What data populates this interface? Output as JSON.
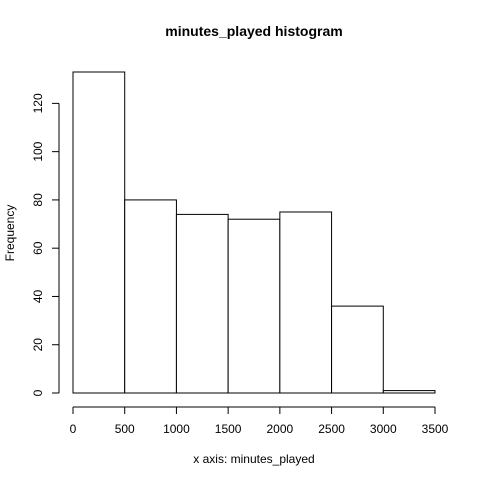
{
  "chart_data": {
    "type": "bar",
    "title": "minutes_played histogram",
    "xlabel": "x axis: minutes_played",
    "ylabel": "Frequency",
    "bins": [
      {
        "start": 0,
        "end": 500,
        "count": 133
      },
      {
        "start": 500,
        "end": 1000,
        "count": 80
      },
      {
        "start": 1000,
        "end": 1500,
        "count": 74
      },
      {
        "start": 1500,
        "end": 2000,
        "count": 72
      },
      {
        "start": 2000,
        "end": 2500,
        "count": 75
      },
      {
        "start": 2500,
        "end": 3000,
        "count": 36
      },
      {
        "start": 3000,
        "end": 3500,
        "count": 1
      }
    ],
    "xlim": [
      0,
      3500
    ],
    "ylim": [
      0,
      133
    ],
    "xticks": [
      0,
      500,
      1000,
      1500,
      2000,
      2500,
      3000,
      3500
    ],
    "yticks": [
      0,
      20,
      40,
      60,
      80,
      100,
      120
    ],
    "grid": false
  }
}
